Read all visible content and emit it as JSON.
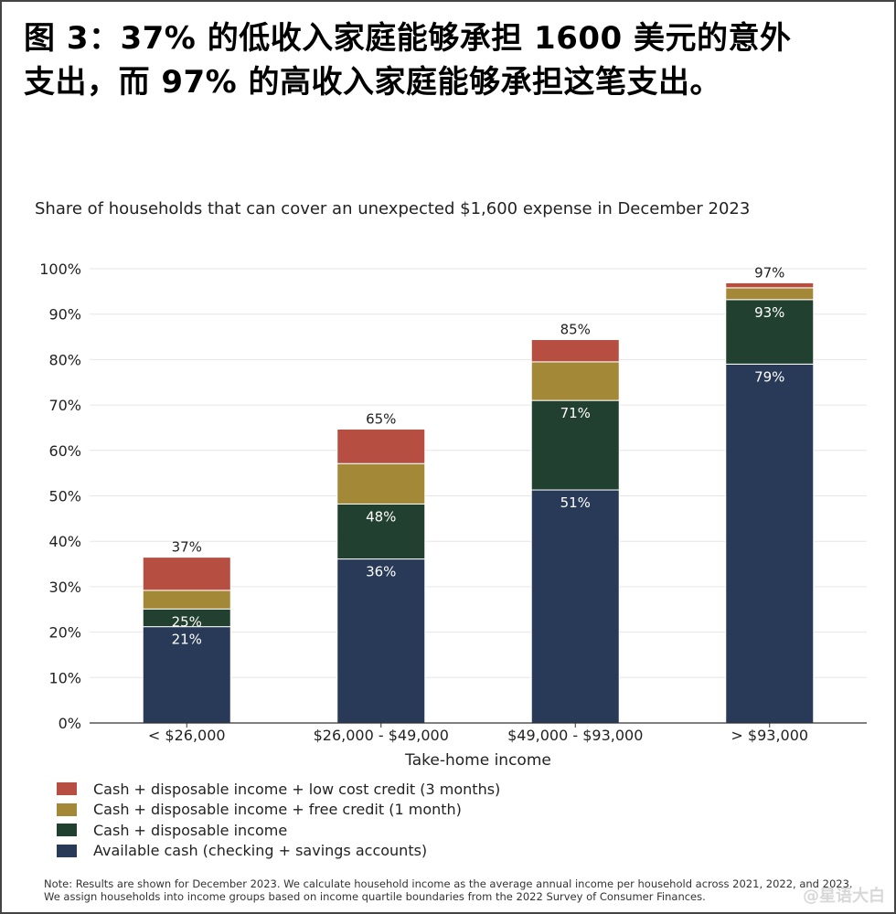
{
  "headline_line1": "图 3：37% 的低收入家庭能够承担 1600 美元的意外",
  "headline_line2": "支出，而 97% 的高收入家庭能够承担这笔支出。",
  "note_line1": "Note: Results are shown for December 2023. We calculate household income as the average annual income per household across 2021, 2022, and 2023.",
  "note_line2": "We assign households into income groups based on income quartile boundaries from the 2022 Survey of Consumer Finances.",
  "watermark": "@星语大白",
  "colors": {
    "available_cash": "#283A57",
    "disposable_income": "#22402F",
    "free_credit": "#A38937",
    "low_cost_credit": "#B64F42",
    "grid": "#e6e6e6",
    "axis": "#333333"
  },
  "chart_data": {
    "type": "bar",
    "stacked": true,
    "title": "Share of households that can cover an unexpected $1,600 expense in December 2023",
    "xlabel": "Take-home income",
    "ylabel": "",
    "ylim": [
      0,
      100
    ],
    "yticks": [
      "0%",
      "10%",
      "20%",
      "30%",
      "40%",
      "50%",
      "60%",
      "70%",
      "80%",
      "90%",
      "100%"
    ],
    "grid": true,
    "legend_position": "bottom-left",
    "categories": [
      "< $26,000",
      "$26,000 - $49,000",
      "$49,000 - $93,000",
      "> $93,000"
    ],
    "cumulative_labels": {
      "available_cash": [
        "21%",
        "36%",
        "51%",
        "79%"
      ],
      "disposable_income": [
        "25%",
        "48%",
        "71%",
        "93%"
      ],
      "total": [
        "37%",
        "65%",
        "85%",
        "97%"
      ]
    },
    "series": [
      {
        "name": "Available cash (checking + savings accounts)",
        "color_key": "available_cash",
        "values": [
          21.2,
          36.1,
          51.3,
          79.0
        ]
      },
      {
        "name": "Cash + disposable income",
        "color_key": "disposable_income",
        "values": [
          3.9,
          12.1,
          19.7,
          14.2
        ]
      },
      {
        "name": "Cash + disposable income + free credit (1 month)",
        "color_key": "free_credit",
        "values": [
          4.1,
          8.9,
          8.5,
          2.6
        ]
      },
      {
        "name": "Cash + disposable income + low cost credit (3 months)",
        "color_key": "low_cost_credit",
        "values": [
          7.3,
          7.6,
          4.9,
          1.1
        ]
      }
    ]
  }
}
